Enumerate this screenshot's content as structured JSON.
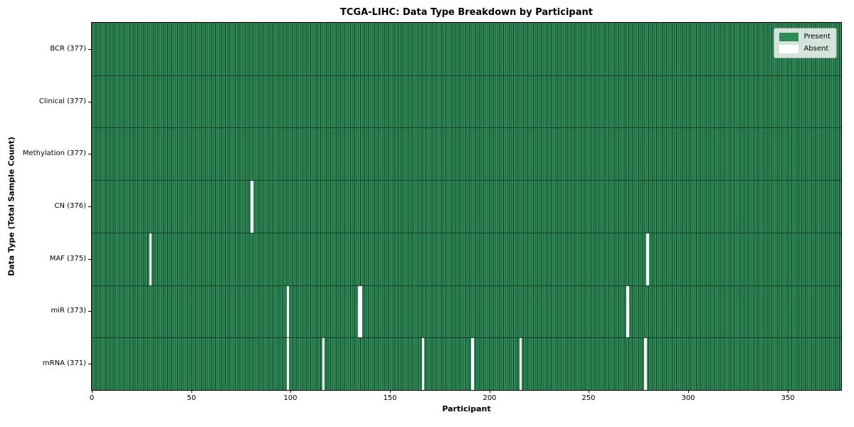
{
  "figure": {
    "title": "TCGA-LIHC: Data Type Breakdown by Participant",
    "xlabel": "Participant",
    "ylabel": "Data Type (Total Sample Count)"
  },
  "legend": {
    "position": "upper right",
    "items": [
      {
        "label": "Present",
        "color": "#2e8b57"
      },
      {
        "label": "Absent",
        "color": "#ffffff"
      }
    ]
  },
  "colors": {
    "present": "#2e8b57",
    "absent": "#ffffff",
    "cell_edge": "#16402a",
    "axis": "#000000"
  },
  "chart_data": {
    "type": "heatmap",
    "title": "TCGA-LIHC: Data Type Breakdown by Participant",
    "xlabel": "Participant",
    "ylabel": "Data Type (Total Sample Count)",
    "grid": false,
    "legend_entries": [
      "Present",
      "Absent"
    ],
    "legend_position": "upper right",
    "n_participants": 377,
    "x_range": [
      0,
      377
    ],
    "x_ticks": [
      0,
      50,
      100,
      150,
      200,
      250,
      300,
      350
    ],
    "rows": [
      {
        "label": "BCR (377)",
        "total_present": 377,
        "absent_participants": []
      },
      {
        "label": "Clinical (377)",
        "total_present": 377,
        "absent_participants": []
      },
      {
        "label": "Methylation (377)",
        "total_present": 377,
        "absent_participants": []
      },
      {
        "label": "CN (376)",
        "total_present": 376,
        "absent_participants": [
          80
        ]
      },
      {
        "label": "MAF (375)",
        "total_present": 375,
        "absent_participants": [
          29,
          279
        ]
      },
      {
        "label": "miR (373)",
        "total_present": 373,
        "absent_participants": [
          98,
          134,
          135,
          269
        ]
      },
      {
        "label": "mRNA (371)",
        "total_present": 371,
        "absent_participants": [
          98,
          116,
          166,
          191,
          215,
          278
        ]
      }
    ]
  }
}
